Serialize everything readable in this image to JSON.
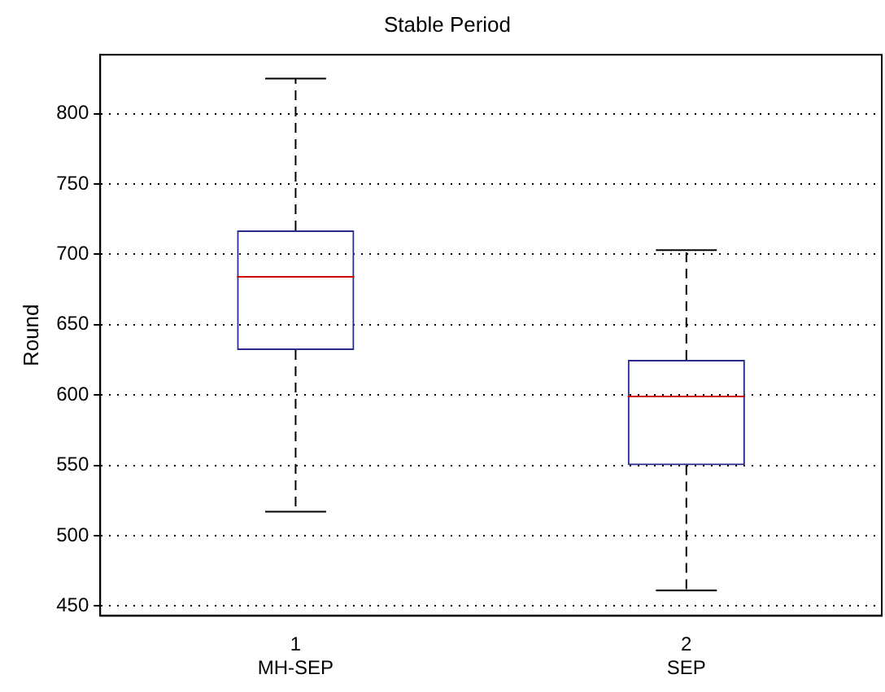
{
  "chart_data": {
    "type": "box",
    "title": "Stable Period",
    "ylabel": "Round",
    "categories": [
      "1\nMH-SEP",
      "2\nSEP"
    ],
    "series": [
      {
        "color": "#2b2b8c",
        "boxes": [
          {
            "low": 517,
            "q1": 632,
            "median": 684,
            "q3": 717,
            "high": 825
          },
          {
            "low": 461,
            "q1": 550,
            "median": 599,
            "q3": 625,
            "high": 703
          }
        ]
      }
    ],
    "ylim": [
      443,
      842
    ],
    "yticks": [
      450,
      500,
      550,
      600,
      650,
      700,
      750,
      800
    ],
    "grid": "y",
    "legend": false
  }
}
